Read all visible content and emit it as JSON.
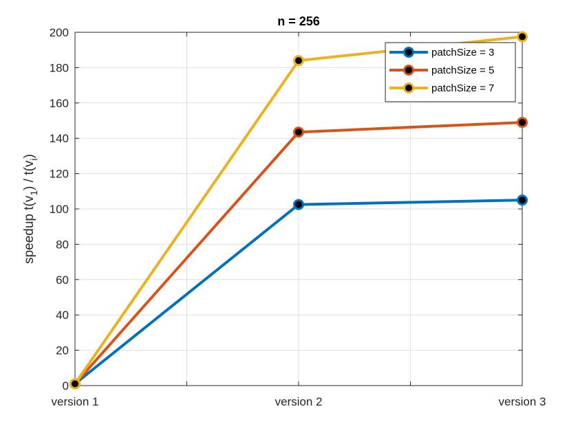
{
  "chart_data": {
    "type": "line",
    "title": "n = 256",
    "ylabel_parts": {
      "pre": "speedup t(v",
      "sub1": "1",
      "mid": ") / t(v",
      "sub2": "i",
      "post": ")"
    },
    "categories": [
      "version 1",
      "version 2",
      "version 3"
    ],
    "ylim": [
      0,
      200
    ],
    "yticks": [
      0,
      20,
      40,
      60,
      80,
      100,
      120,
      140,
      160,
      180,
      200
    ],
    "grid": true,
    "legend_position": "top-right",
    "series": [
      {
        "name": "patchSize = 3",
        "color": "#0072BD",
        "values": [
          1,
          102.5,
          105
        ]
      },
      {
        "name": "patchSize = 5",
        "color": "#D95319",
        "values": [
          1,
          143.5,
          149
        ]
      },
      {
        "name": "patchSize = 7",
        "color": "#EDB120",
        "values": [
          1,
          184,
          197.5
        ]
      }
    ]
  }
}
